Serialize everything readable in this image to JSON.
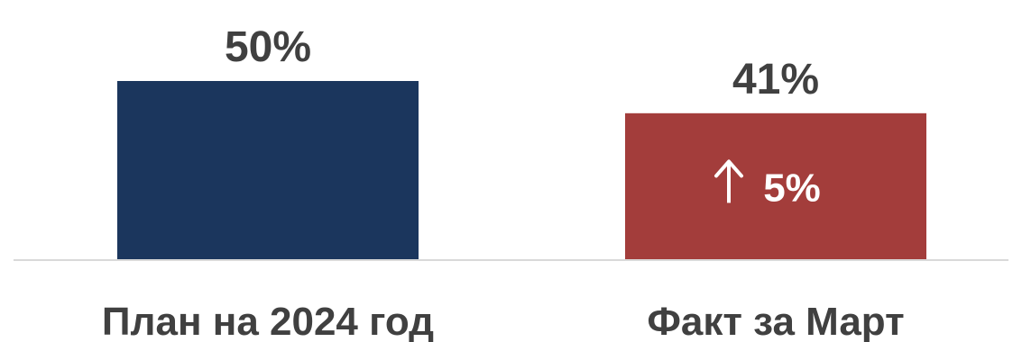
{
  "chart_data": {
    "type": "bar",
    "categories": [
      "План на 2024 год",
      "Факт за Март"
    ],
    "values": [
      50,
      41
    ],
    "data_labels": [
      "50%",
      "41%"
    ],
    "bar_colors": [
      "#1b365d",
      "#a33d3b"
    ],
    "annotation": {
      "category_index": 1,
      "arrow": "↑",
      "text": "5%",
      "icon": "arrow-up-icon"
    },
    "axis_color": "#d9d9d9",
    "label_color": "#404040",
    "ylim": [
      0,
      60
    ],
    "grid": false,
    "legend": "none"
  }
}
